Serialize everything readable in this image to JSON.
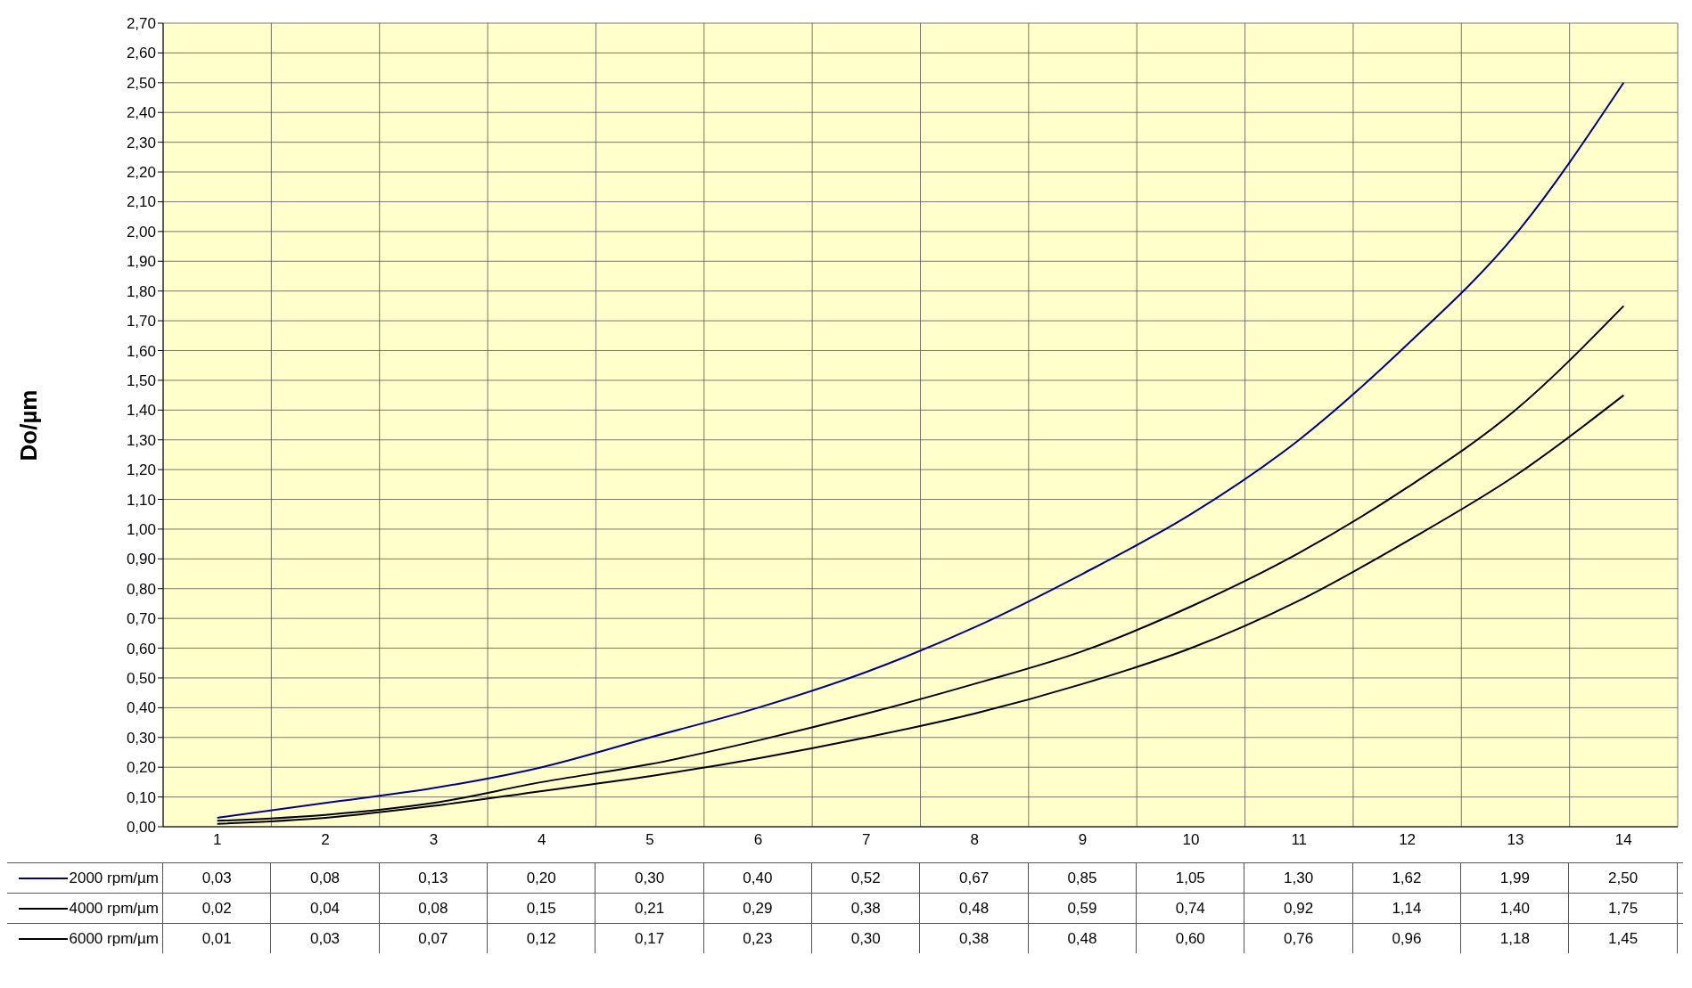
{
  "chart_data": {
    "type": "line",
    "ylabel": "Do/µm",
    "categories": [
      "1",
      "2",
      "3",
      "4",
      "5",
      "6",
      "7",
      "8",
      "9",
      "10",
      "11",
      "12",
      "13",
      "14"
    ],
    "series": [
      {
        "name": "2000 rpm/µm",
        "color": "#000080",
        "values": [
          0.03,
          0.08,
          0.13,
          0.2,
          0.3,
          0.4,
          0.52,
          0.67,
          0.85,
          1.05,
          1.3,
          1.62,
          1.99,
          2.5
        ],
        "value_labels": [
          "0,03",
          "0,08",
          "0,13",
          "0,20",
          "0,30",
          "0,40",
          "0,52",
          "0,67",
          "0,85",
          "1,05",
          "1,30",
          "1,62",
          "1,99",
          "2,50"
        ]
      },
      {
        "name": "4000 rpm/µm",
        "color": "#000000",
        "values": [
          0.02,
          0.04,
          0.08,
          0.15,
          0.21,
          0.29,
          0.38,
          0.48,
          0.59,
          0.74,
          0.92,
          1.14,
          1.4,
          1.75
        ],
        "value_labels": [
          "0,02",
          "0,04",
          "0,08",
          "0,15",
          "0,21",
          "0,29",
          "0,38",
          "0,48",
          "0,59",
          "0,74",
          "0,92",
          "1,14",
          "1,40",
          "1,75"
        ]
      },
      {
        "name": "6000 rpm/µm",
        "color": "#000000",
        "values": [
          0.01,
          0.03,
          0.07,
          0.12,
          0.17,
          0.23,
          0.3,
          0.38,
          0.48,
          0.6,
          0.76,
          0.96,
          1.18,
          1.45
        ],
        "value_labels": [
          "0,01",
          "0,03",
          "0,07",
          "0,12",
          "0,17",
          "0,23",
          "0,30",
          "0,38",
          "0,48",
          "0,60",
          "0,76",
          "0,96",
          "1,18",
          "1,45"
        ]
      }
    ],
    "ylim": [
      0,
      2.7
    ],
    "yticks": [
      {
        "value": 0,
        "label": "0,00"
      },
      {
        "value": 0.1,
        "label": "0,10"
      },
      {
        "value": 0.2,
        "label": "0,20"
      },
      {
        "value": 0.3,
        "label": "0,30"
      },
      {
        "value": 0.4,
        "label": "0,40"
      },
      {
        "value": 0.5,
        "label": "0,50"
      },
      {
        "value": 0.6,
        "label": "0,60"
      },
      {
        "value": 0.7,
        "label": "0,70"
      },
      {
        "value": 0.8,
        "label": "0,80"
      },
      {
        "value": 0.9,
        "label": "0,90"
      },
      {
        "value": 1.0,
        "label": "1,00"
      },
      {
        "value": 1.1,
        "label": "1,10"
      },
      {
        "value": 1.2,
        "label": "1,20"
      },
      {
        "value": 1.3,
        "label": "1,30"
      },
      {
        "value": 1.4,
        "label": "1,40"
      },
      {
        "value": 1.5,
        "label": "1,50"
      },
      {
        "value": 1.6,
        "label": "1,60"
      },
      {
        "value": 1.7,
        "label": "1,70"
      },
      {
        "value": 1.8,
        "label": "1,80"
      },
      {
        "value": 1.9,
        "label": "1,90"
      },
      {
        "value": 2.0,
        "label": "2,00"
      },
      {
        "value": 2.1,
        "label": "2,10"
      },
      {
        "value": 2.2,
        "label": "2,20"
      },
      {
        "value": 2.3,
        "label": "2,30"
      },
      {
        "value": 2.4,
        "label": "2,40"
      },
      {
        "value": 2.5,
        "label": "2,50"
      },
      {
        "value": 2.6,
        "label": "2,60"
      },
      {
        "value": 2.7,
        "label": "2,70"
      }
    ],
    "grid": true,
    "legend": "bottom",
    "marker": "none",
    "line_style": "solid"
  }
}
